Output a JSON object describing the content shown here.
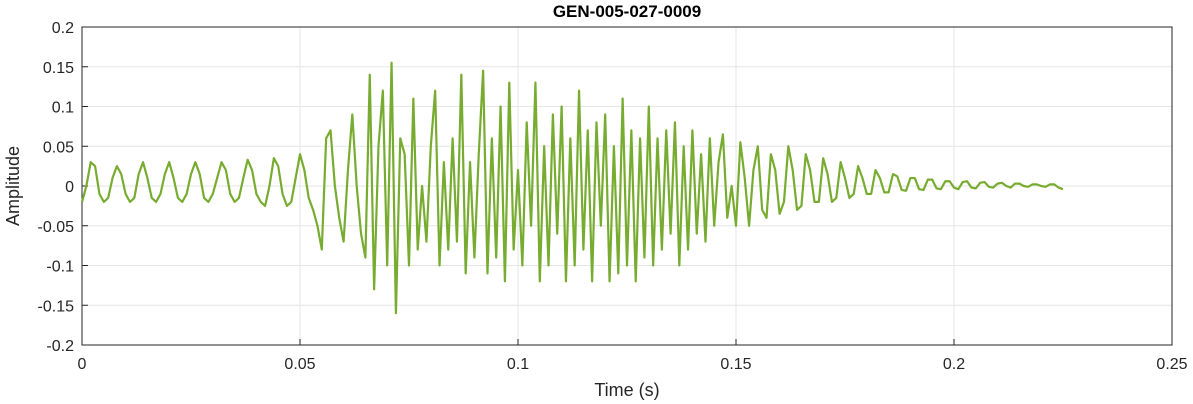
{
  "chart_data": {
    "type": "line",
    "title": "GEN-005-027-0009",
    "xlabel": "Time (s)",
    "ylabel": "Amplitude",
    "grid": true,
    "color": "#77ac30",
    "xlim": [
      0,
      0.25
    ],
    "xticks": [
      0,
      0.05,
      0.1,
      0.15,
      0.2,
      0.25
    ],
    "ylim": [
      -0.2,
      0.2
    ],
    "yticks": [
      0.2,
      0.15,
      0.1,
      0.05,
      0,
      -0.05,
      -0.1,
      -0.15,
      -0.2
    ],
    "x": [
      0,
      0.001,
      0.002,
      0.003,
      0.004,
      0.005,
      0.006,
      0.007,
      0.008,
      0.009,
      0.01,
      0.011,
      0.012,
      0.013,
      0.014,
      0.015,
      0.016,
      0.017,
      0.018,
      0.019,
      0.02,
      0.021,
      0.022,
      0.023,
      0.024,
      0.025,
      0.026,
      0.027,
      0.028,
      0.029,
      0.03,
      0.031,
      0.032,
      0.033,
      0.034,
      0.035,
      0.036,
      0.037,
      0.038,
      0.039,
      0.04,
      0.041,
      0.042,
      0.043,
      0.044,
      0.045,
      0.046,
      0.047,
      0.048,
      0.049,
      0.05,
      0.051,
      0.052,
      0.053,
      0.054,
      0.055,
      0.056,
      0.057,
      0.058,
      0.059,
      0.06,
      0.061,
      0.062,
      0.063,
      0.064,
      0.065,
      0.066,
      0.067,
      0.068,
      0.069,
      0.07,
      0.071,
      0.072,
      0.073,
      0.074,
      0.075,
      0.076,
      0.077,
      0.078,
      0.079,
      0.08,
      0.081,
      0.082,
      0.083,
      0.084,
      0.085,
      0.086,
      0.087,
      0.088,
      0.089,
      0.09,
      0.091,
      0.092,
      0.093,
      0.094,
      0.095,
      0.096,
      0.097,
      0.098,
      0.099,
      0.1,
      0.101,
      0.102,
      0.103,
      0.104,
      0.105,
      0.106,
      0.107,
      0.108,
      0.109,
      0.11,
      0.111,
      0.112,
      0.113,
      0.114,
      0.115,
      0.116,
      0.117,
      0.118,
      0.119,
      0.12,
      0.121,
      0.122,
      0.123,
      0.124,
      0.125,
      0.126,
      0.127,
      0.128,
      0.129,
      0.13,
      0.131,
      0.132,
      0.133,
      0.134,
      0.135,
      0.136,
      0.137,
      0.138,
      0.139,
      0.14,
      0.141,
      0.142,
      0.143,
      0.144,
      0.145,
      0.146,
      0.147,
      0.148,
      0.149,
      0.15,
      0.151,
      0.152,
      0.153,
      0.154,
      0.155,
      0.156,
      0.157,
      0.158,
      0.159,
      0.16,
      0.161,
      0.162,
      0.163,
      0.164,
      0.165,
      0.166,
      0.167,
      0.168,
      0.169,
      0.17,
      0.171,
      0.172,
      0.173,
      0.174,
      0.175,
      0.176,
      0.177,
      0.178,
      0.179,
      0.18,
      0.181,
      0.182,
      0.183,
      0.184,
      0.185,
      0.186,
      0.187,
      0.188,
      0.189,
      0.19,
      0.191,
      0.192,
      0.193,
      0.194,
      0.195,
      0.196,
      0.197,
      0.198,
      0.199,
      0.2,
      0.201,
      0.202,
      0.203,
      0.204,
      0.205,
      0.206,
      0.207,
      0.208,
      0.209,
      0.21,
      0.211,
      0.212,
      0.213,
      0.214,
      0.215,
      0.216,
      0.217,
      0.218,
      0.219,
      0.22,
      0.221,
      0.222,
      0.223,
      0.224,
      0.225
    ],
    "series": [
      {
        "name": "Amplitude",
        "color": "#77ac30",
        "values": [
          -0.02,
          0.0,
          0.03,
          0.025,
          -0.01,
          -0.02,
          -0.015,
          0.01,
          0.025,
          0.015,
          -0.01,
          -0.02,
          -0.015,
          0.015,
          0.03,
          0.01,
          -0.015,
          -0.02,
          -0.01,
          0.015,
          0.03,
          0.01,
          -0.015,
          -0.02,
          -0.01,
          0.015,
          0.03,
          0.015,
          -0.015,
          -0.02,
          -0.01,
          0.01,
          0.03,
          0.02,
          -0.01,
          -0.02,
          -0.015,
          0.01,
          0.033,
          0.02,
          -0.01,
          -0.02,
          -0.025,
          0.0,
          0.035,
          0.025,
          -0.01,
          -0.025,
          -0.02,
          0.01,
          0.04,
          0.02,
          -0.015,
          -0.03,
          -0.05,
          -0.08,
          0.06,
          0.07,
          0.0,
          -0.04,
          -0.07,
          0.02,
          0.09,
          0.0,
          -0.06,
          -0.09,
          0.14,
          -0.13,
          0.05,
          0.12,
          -0.1,
          0.155,
          -0.16,
          0.06,
          0.04,
          -0.1,
          0.11,
          -0.08,
          0.0,
          -0.07,
          0.05,
          0.12,
          -0.1,
          0.03,
          -0.08,
          0.06,
          -0.07,
          0.14,
          -0.11,
          0.03,
          -0.09,
          0.04,
          0.145,
          -0.11,
          0.06,
          -0.09,
          0.1,
          -0.12,
          0.13,
          -0.08,
          0.02,
          -0.1,
          0.08,
          -0.05,
          0.13,
          -0.12,
          0.05,
          -0.1,
          0.09,
          -0.06,
          0.1,
          -0.12,
          0.06,
          -0.1,
          0.12,
          -0.08,
          0.07,
          -0.12,
          0.08,
          -0.05,
          0.09,
          -0.12,
          0.05,
          -0.11,
          0.11,
          -0.1,
          0.07,
          -0.12,
          0.06,
          -0.09,
          0.1,
          -0.1,
          0.06,
          -0.08,
          0.07,
          -0.06,
          0.08,
          -0.1,
          0.05,
          -0.08,
          0.07,
          -0.06,
          0.04,
          -0.07,
          0.06,
          -0.05,
          0.03,
          0.065,
          -0.04,
          0.0,
          -0.05,
          0.055,
          0.01,
          -0.05,
          0.02,
          0.05,
          -0.03,
          -0.04,
          0.04,
          0.02,
          -0.035,
          -0.02,
          0.05,
          0.02,
          -0.03,
          -0.025,
          0.04,
          0.02,
          -0.02,
          -0.02,
          0.035,
          0.015,
          -0.02,
          -0.015,
          0.03,
          0.01,
          -0.015,
          -0.01,
          0.025,
          0.01,
          -0.01,
          -0.01,
          0.02,
          0.01,
          -0.008,
          -0.008,
          0.015,
          0.012,
          -0.005,
          -0.006,
          0.01,
          0.01,
          -0.004,
          -0.005,
          0.008,
          0.008,
          -0.003,
          -0.004,
          0.006,
          0.006,
          -0.002,
          -0.004,
          0.005,
          0.006,
          -0.002,
          -0.003,
          0.004,
          0.005,
          -0.001,
          -0.002,
          0.003,
          0.004,
          0.0,
          -0.002,
          0.003,
          0.003,
          0.0,
          -0.001,
          0.002,
          0.002,
          0.0,
          -0.001,
          0.002,
          0.002,
          -0.002,
          -0.004
        ]
      }
    ]
  }
}
